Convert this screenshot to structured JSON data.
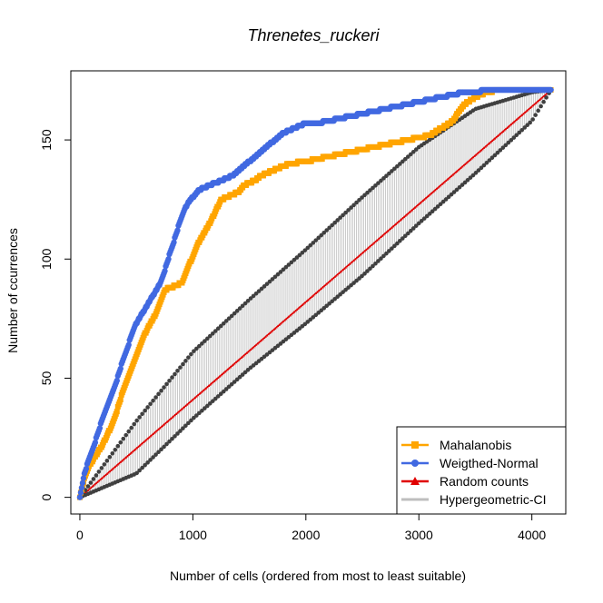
{
  "chart_data": {
    "type": "line",
    "title": "Threnetes_ruckeri",
    "xlabel": "Number of cells (ordered from most to least suitable)",
    "ylabel": "Number of ccurrences",
    "xlim": [
      -80,
      4300
    ],
    "ylim": [
      -7,
      179
    ],
    "xticks": [
      0,
      1000,
      2000,
      3000,
      4000
    ],
    "yticks": [
      0,
      50,
      100,
      150
    ],
    "grid": false,
    "legend_position": "bottom-right",
    "colors": {
      "mahalanobis": "#FFA500",
      "weighted_normal": "#4169E1",
      "random": "#E00000",
      "ci_points": "#404040",
      "ci_lines": "#BEBEBE"
    },
    "series": [
      {
        "name": "Mahalanobis",
        "marker": "square",
        "x": [
          0,
          40,
          80,
          120,
          160,
          200,
          250,
          300,
          350,
          400,
          450,
          500,
          550,
          600,
          650,
          700,
          750,
          800,
          850,
          900,
          950,
          1000,
          1050,
          1100,
          1150,
          1200,
          1250,
          1300,
          1350,
          1400,
          1450,
          1500,
          1550,
          1600,
          1650,
          1700,
          1750,
          1800,
          1850,
          1900,
          1950,
          2000,
          2100,
          2200,
          2300,
          2400,
          2500,
          2600,
          2700,
          2800,
          2900,
          3000,
          3100,
          3200,
          3300,
          3400,
          3500,
          3600,
          3700,
          3800,
          3900,
          4000,
          4100,
          4170
        ],
        "y": [
          0,
          8,
          13,
          16,
          19,
          22,
          27,
          32,
          40,
          47,
          53,
          60,
          66,
          71,
          75,
          80,
          87,
          88,
          89,
          90,
          96,
          101,
          107,
          111,
          115,
          120,
          125,
          126,
          127,
          128,
          131,
          132,
          133,
          135,
          136,
          137,
          138,
          139,
          140,
          140,
          141,
          141,
          142,
          143,
          144,
          145,
          146,
          147,
          148,
          149,
          150,
          151,
          152,
          155,
          158,
          165,
          168,
          170,
          171,
          171,
          171,
          171,
          171,
          171
        ]
      },
      {
        "name": "Weigthed-Normal",
        "marker": "circle",
        "x": [
          0,
          40,
          80,
          120,
          160,
          200,
          250,
          300,
          350,
          400,
          450,
          500,
          550,
          600,
          650,
          700,
          750,
          800,
          850,
          900,
          950,
          1000,
          1050,
          1100,
          1150,
          1200,
          1250,
          1300,
          1350,
          1400,
          1450,
          1500,
          1550,
          1600,
          1650,
          1700,
          1750,
          1800,
          1850,
          1900,
          1950,
          2000,
          2100,
          2200,
          2300,
          2400,
          2500,
          2600,
          2700,
          2800,
          2900,
          3000,
          3100,
          3200,
          3300,
          3400,
          3500,
          3600,
          3700,
          3800,
          3900,
          4000,
          4100,
          4170
        ],
        "y": [
          0,
          10,
          16,
          21,
          27,
          33,
          39,
          45,
          53,
          60,
          67,
          73,
          77,
          81,
          85,
          89,
          95,
          103,
          110,
          118,
          123,
          126,
          129,
          130,
          131,
          132,
          133,
          134,
          135,
          137,
          139,
          141,
          143,
          145,
          147,
          149,
          151,
          153,
          154,
          155,
          156,
          157,
          157,
          158,
          159,
          160,
          161,
          162,
          163,
          164,
          165,
          166,
          167,
          168,
          169,
          170,
          170,
          171,
          171,
          171,
          171,
          171,
          171,
          171
        ]
      },
      {
        "name": "Random counts",
        "marker": "triangle",
        "x": [
          0,
          4170
        ],
        "y": [
          0,
          171
        ]
      }
    ],
    "hypergeometric_ci": {
      "name": "Hypergeometric-CI",
      "x": [
        0,
        500,
        1000,
        1500,
        2000,
        2500,
        3000,
        3500,
        4000,
        4170
      ],
      "upper": [
        0,
        32,
        61,
        83,
        104,
        126,
        147,
        163,
        170,
        171
      ],
      "lower": [
        0,
        10,
        33,
        54,
        73,
        93,
        115,
        136,
        158,
        171
      ]
    }
  },
  "legend": {
    "items": [
      {
        "label": "Mahalanobis",
        "color": "#FFA500",
        "marker": "square"
      },
      {
        "label": "Weigthed-Normal",
        "color": "#4169E1",
        "marker": "circle"
      },
      {
        "label": "Random counts",
        "color": "#E00000",
        "marker": "triangle"
      },
      {
        "label": "Hypergeometric-CI",
        "color": "#BEBEBE",
        "marker": "none"
      }
    ]
  }
}
